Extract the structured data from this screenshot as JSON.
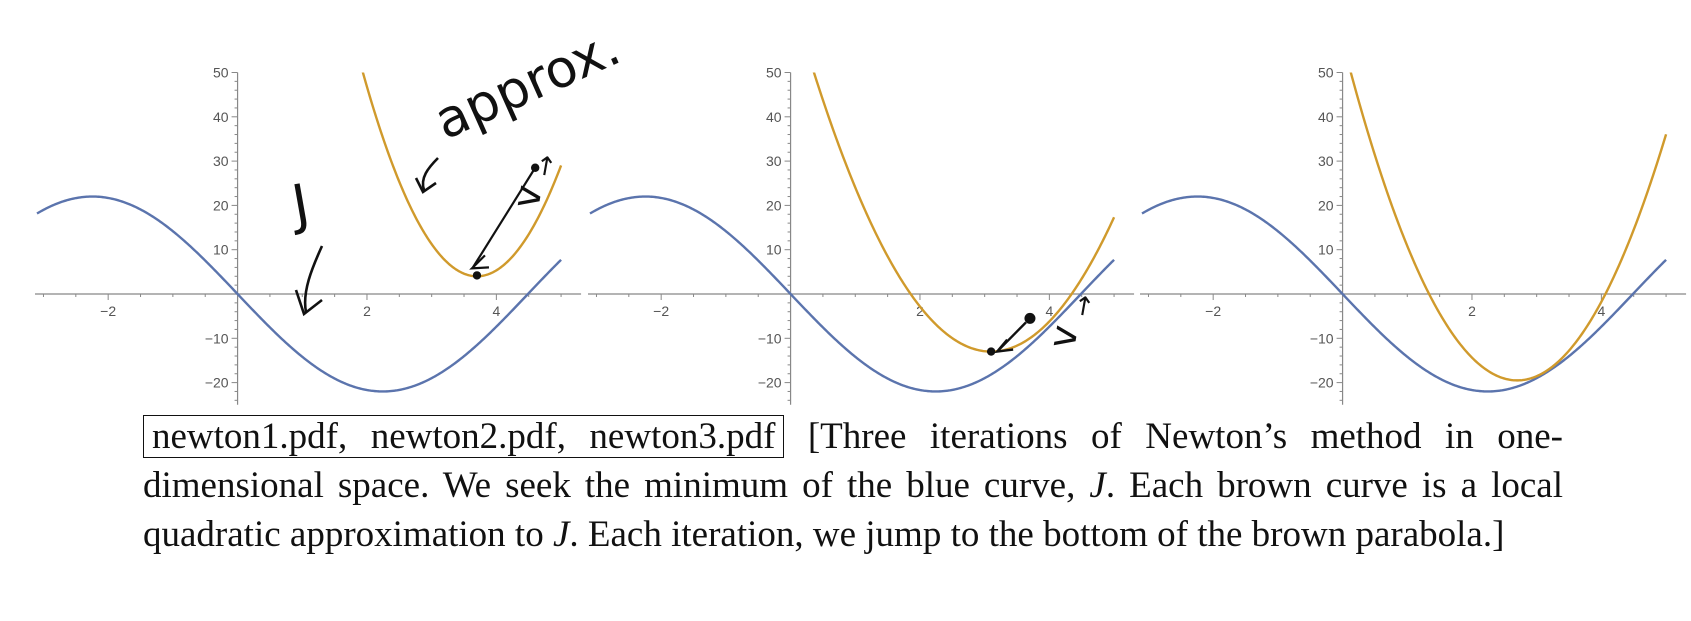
{
  "chart_data": [
    {
      "type": "line",
      "panel_label": "newton1.pdf",
      "xlim": [
        -3.1,
        5.0
      ],
      "ylim": [
        -25,
        50
      ],
      "x_ticks": [
        -2,
        2,
        4
      ],
      "y_ticks": [
        -20,
        -10,
        10,
        20,
        30,
        40,
        50
      ],
      "grid": false,
      "series": [
        {
          "role": "J",
          "color": "#5b74ad",
          "formula": "J(x) = -22*sin(0.7*x)",
          "x_range": [
            -3.1,
            5.0
          ]
        },
        {
          "role": "quadratic",
          "color": "#d09a2c",
          "vertex": [
            3.7,
            4
          ],
          "curvature": 14.8,
          "x_range": [
            -3.1,
            5.0
          ]
        }
      ],
      "points": [
        {
          "x": 4.6,
          "y": 28.5
        },
        {
          "x": 3.7,
          "y": 4.2
        }
      ],
      "annotations": {
        "approx_text": "approx.",
        "j_text": "J",
        "v_text": "v",
        "v_vector_mark": "→"
      }
    },
    {
      "type": "line",
      "panel_label": "newton2.pdf",
      "xlim": [
        -3.1,
        5.0
      ],
      "ylim": [
        -25,
        50
      ],
      "x_ticks": [
        -2,
        2,
        4
      ],
      "y_ticks": [
        -20,
        -10,
        10,
        20,
        30,
        40,
        50
      ],
      "grid": false,
      "series": [
        {
          "role": "J",
          "color": "#5b74ad",
          "formula": "J(x) = -22*sin(0.7*x)",
          "x_range": [
            -3.1,
            5.0
          ]
        },
        {
          "role": "quadratic",
          "color": "#d09a2c",
          "vertex": [
            3.1,
            -13
          ],
          "curvature": 8.4,
          "x_range": [
            -3.1,
            5.0
          ]
        }
      ],
      "points": [
        {
          "x": 3.7,
          "y": -5.5
        },
        {
          "x": 3.1,
          "y": -13
        }
      ],
      "annotations": {
        "v_text": "v",
        "v_vector_mark": "→"
      }
    },
    {
      "type": "line",
      "panel_label": "newton3.pdf",
      "xlim": [
        -3.1,
        5.0
      ],
      "ylim": [
        -25,
        50
      ],
      "x_ticks": [
        -2,
        2,
        4
      ],
      "y_ticks": [
        -20,
        -10,
        10,
        20,
        30,
        40,
        50
      ],
      "grid": false,
      "series": [
        {
          "role": "J",
          "color": "#5b74ad",
          "formula": "J(x) = -22*sin(0.7*x)",
          "x_range": [
            -3.1,
            5.0
          ]
        },
        {
          "role": "quadratic",
          "color": "#d09a2c",
          "vertex": [
            2.7,
            -19.5
          ],
          "curvature": 10.5,
          "x_range": [
            -3.1,
            5.0
          ]
        }
      ],
      "points": []
    }
  ],
  "caption": {
    "file_refs": "newton1.pdf, newton2.pdf, newton3.pdf",
    "text_part1": " [Three iterations of Newton’s method in one-dimensional space.  We seek the minimum of the blue curve, ",
    "j1": "J",
    "text_part2": ".  Each brown curve is a local quadratic approximation to ",
    "j2": "J",
    "text_part3": ".  Each iteration, we jump to the bottom of the brown parabola.]"
  },
  "colors": {
    "blue_curve": "#5b74ad",
    "brown_curve": "#d09a2c",
    "axis": "#888888",
    "ink": "#111111"
  }
}
